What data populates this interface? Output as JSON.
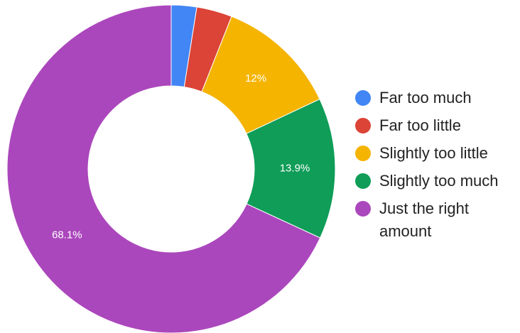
{
  "chart_data": {
    "type": "pie",
    "donut": true,
    "title": "",
    "categories": [
      "Far too much",
      "Far too little",
      "Slightly too little",
      "Slightly too much",
      "Just the right amount"
    ],
    "values": [
      2.5,
      3.5,
      12,
      13.9,
      68.1
    ],
    "data_labels": [
      "",
      "",
      "12%",
      "13.9%",
      "68.1%"
    ],
    "colors": [
      "#4285f4",
      "#db4437",
      "#f4b400",
      "#0f9d58",
      "#ab47bc"
    ],
    "legend_position": "right"
  }
}
